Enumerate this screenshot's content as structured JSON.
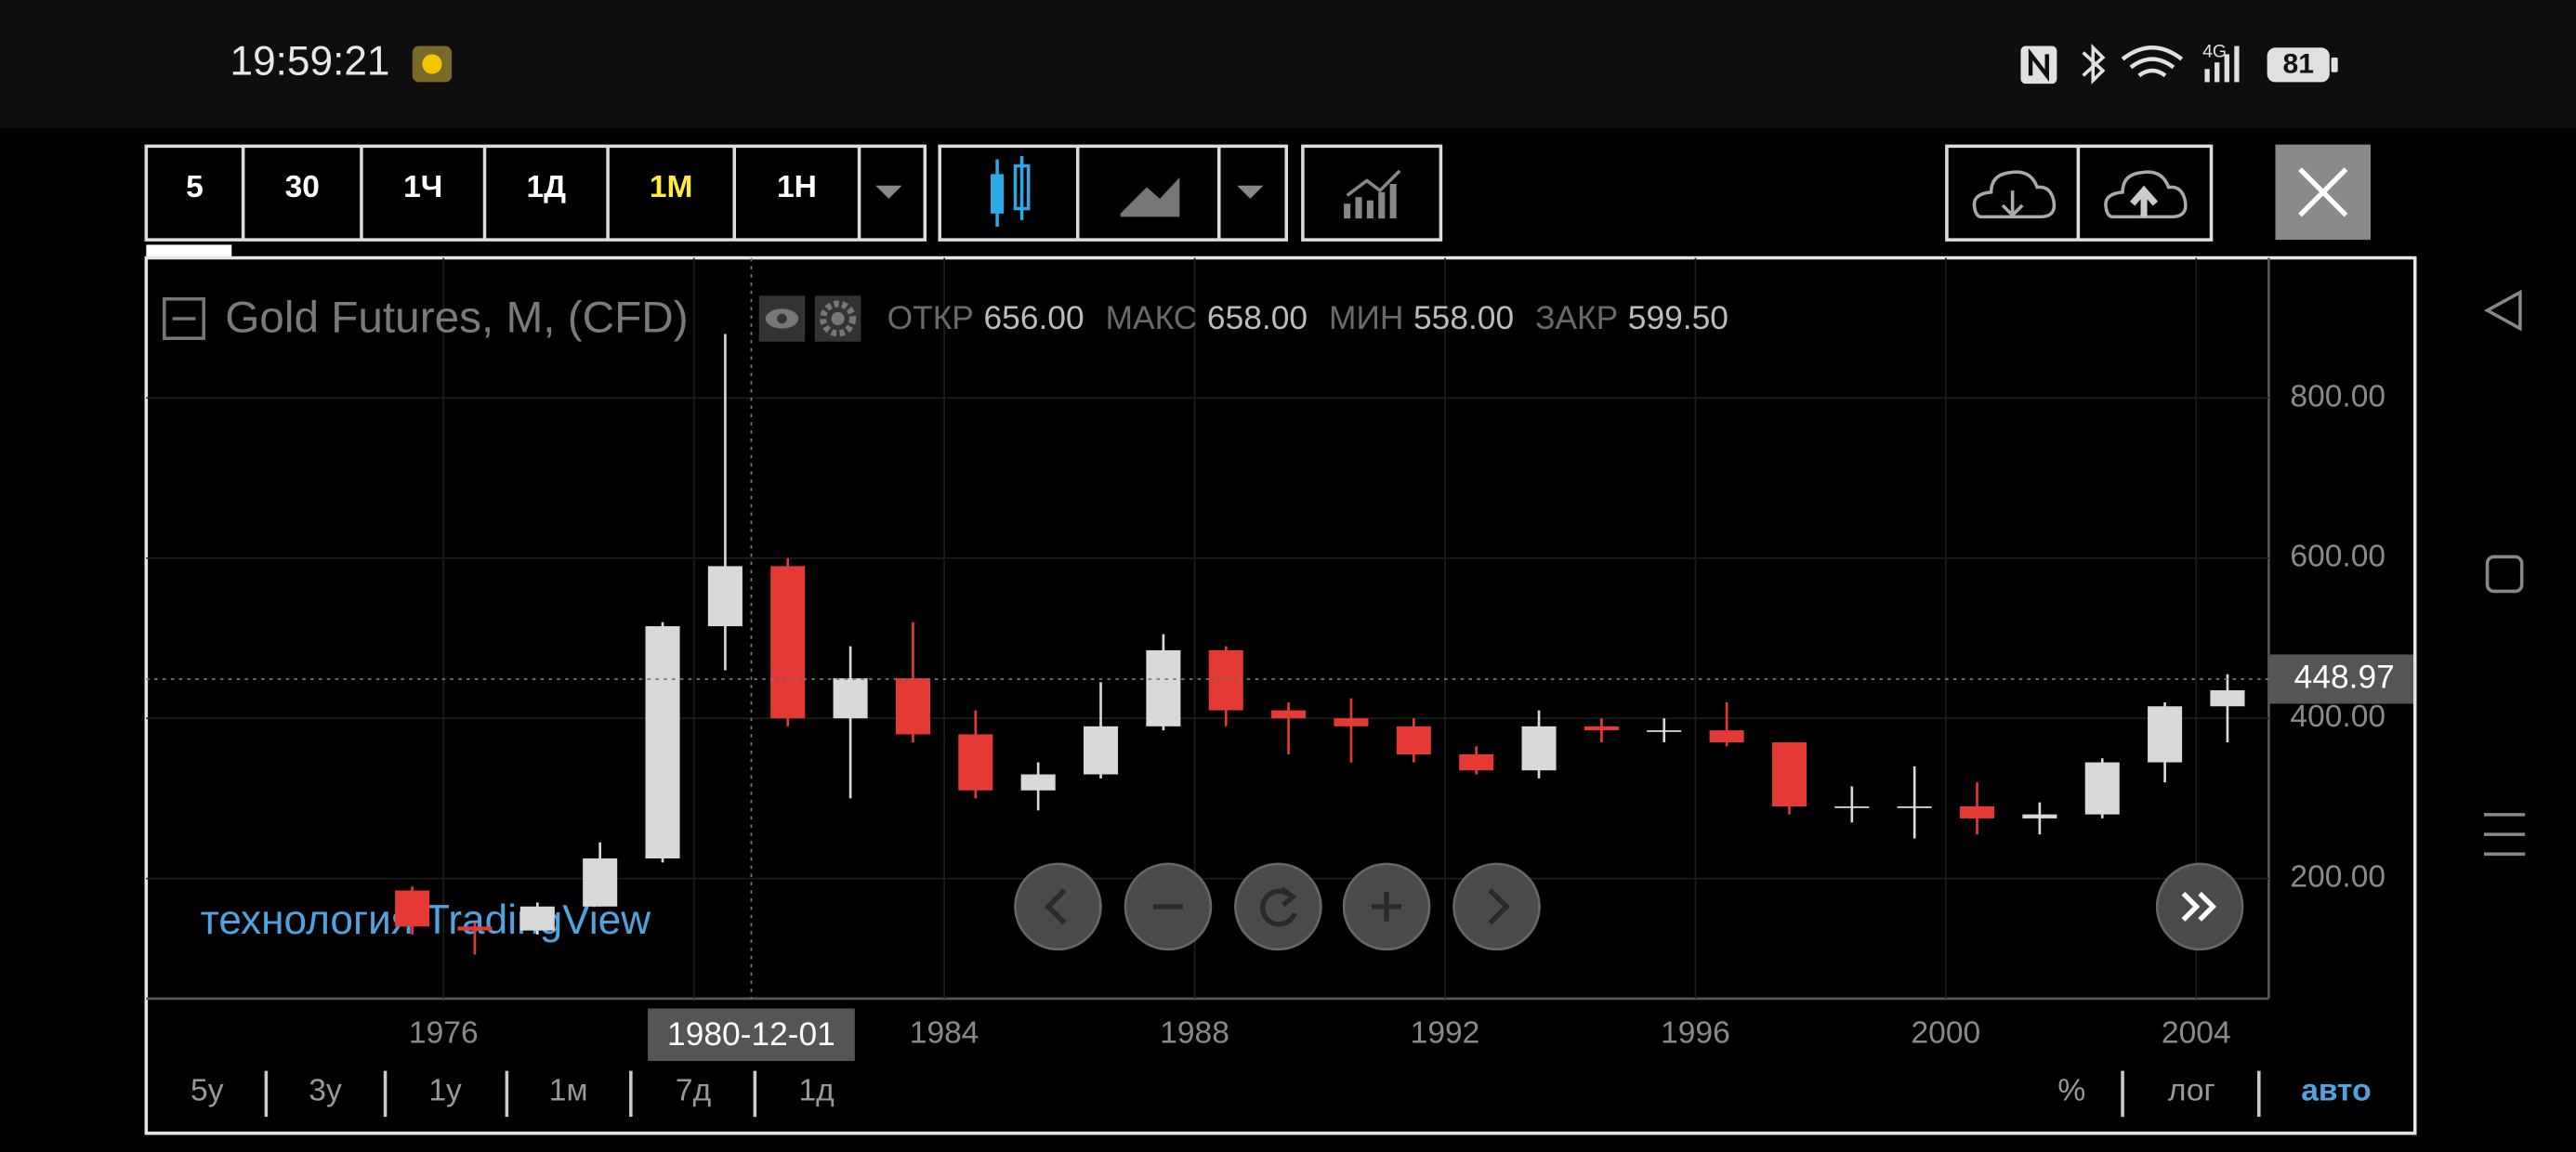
{
  "status_bar": {
    "time": "19:59:21",
    "network": "4G",
    "battery": "81"
  },
  "toolbar": {
    "intervals": [
      "5",
      "30",
      "1Ч",
      "1Д",
      "1М",
      "1Н"
    ],
    "active_interval": 4
  },
  "chart_data": {
    "type": "candlestick",
    "title": "Gold Futures, M, (CFD)",
    "ohlc_readout": [
      {
        "label": "ОТКР",
        "value": "656.00"
      },
      {
        "label": "МАКС",
        "value": "658.00"
      },
      {
        "label": "МИН",
        "value": "558.00"
      },
      {
        "label": "ЗАКР",
        "value": "599.50"
      }
    ],
    "x": [
      1975,
      1976,
      1977,
      1978,
      1979,
      1980,
      1981,
      1982,
      1983,
      1984,
      1985,
      1986,
      1987,
      1988,
      1989,
      1990,
      1991,
      1992,
      1993,
      1994,
      1995,
      1996,
      1997,
      1998,
      1999,
      2000,
      2001,
      2002,
      2003,
      2004
    ],
    "open": [
      185,
      140,
      135,
      165,
      225,
      515,
      590,
      400,
      450,
      380,
      310,
      330,
      390,
      485,
      410,
      400,
      390,
      355,
      335,
      390,
      385,
      385,
      370,
      290,
      290,
      290,
      275,
      280,
      345,
      415
    ],
    "high": [
      190,
      145,
      170,
      245,
      520,
      880,
      600,
      490,
      520,
      410,
      345,
      445,
      505,
      490,
      420,
      425,
      400,
      365,
      410,
      400,
      400,
      420,
      370,
      315,
      340,
      320,
      295,
      350,
      420,
      455
    ],
    "low": [
      130,
      105,
      130,
      165,
      220,
      460,
      390,
      300,
      370,
      300,
      285,
      325,
      385,
      390,
      355,
      345,
      345,
      330,
      325,
      370,
      370,
      365,
      280,
      270,
      250,
      255,
      255,
      275,
      320,
      370
    ],
    "close": [
      140,
      135,
      165,
      225,
      515,
      590,
      400,
      450,
      380,
      310,
      330,
      390,
      485,
      410,
      400,
      390,
      355,
      335,
      390,
      385,
      385,
      370,
      290,
      290,
      290,
      275,
      280,
      345,
      415,
      435
    ],
    "up_color": "#d9d9d9",
    "down_color": "#e53935",
    "xlim": [
      1971.25,
      2005.16
    ],
    "ylim": [
      50,
      975
    ],
    "xticks": [
      1976,
      1980,
      1984,
      1988,
      1992,
      1996,
      2000,
      2004
    ],
    "yticks": [
      {
        "value": 200,
        "label": "200.00"
      },
      {
        "value": 400,
        "label": "400.00"
      },
      {
        "value": 600,
        "label": "600.00"
      },
      {
        "value": 800,
        "label": "800.00"
      }
    ],
    "grid": true,
    "crosshair": {
      "x_label": "1980-12-01",
      "y": 448.97
    },
    "watermark": "технология TradingView"
  },
  "range_buttons": [
    "5у",
    "3у",
    "1у",
    "1м",
    "7д",
    "1д"
  ],
  "scale_buttons": [
    "%",
    "лог",
    "авто"
  ],
  "active_scale": 2
}
